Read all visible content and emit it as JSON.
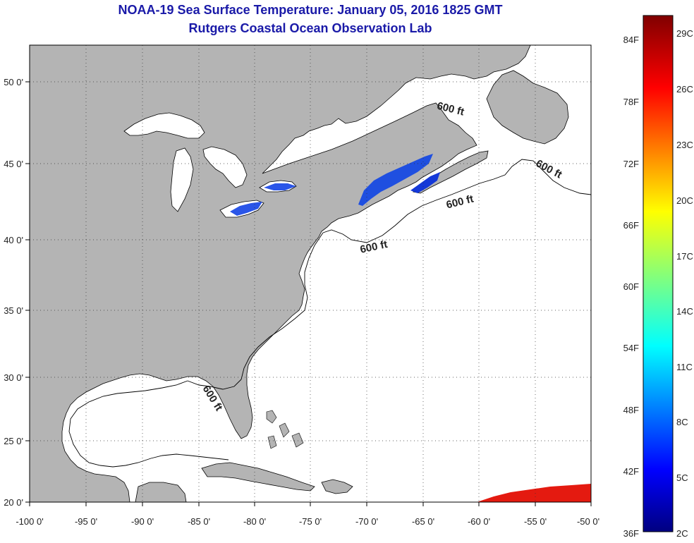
{
  "title": "NOAA-19 Sea Surface Temperature:  January 05, 2016 1825 GMT",
  "subtitle": "Rutgers Coastal Ocean Observation Lab",
  "map": {
    "lon_range": [
      -100,
      -50
    ],
    "lat_range": [
      20,
      52
    ],
    "lon_ticks": [
      "-100 0'",
      "-95 0'",
      "-90 0'",
      "-85 0'",
      "-80 0'",
      "-75 0'",
      "-70 0'",
      "-65 0'",
      "-60 0'",
      "-55 0'",
      "-50 0'"
    ],
    "lat_ticks": [
      "50 0'",
      "45 0'",
      "40 0'",
      "35 0'",
      "30 0'",
      "25 0'",
      "20 0'"
    ],
    "land_color": "#b4b4b4",
    "water_color": "#ffffff",
    "grid": "dotted",
    "isobath_labels": [
      "600 ft",
      "600 ft",
      "600 ft",
      "600 ft"
    ]
  },
  "colorbar": {
    "fahrenheit": [
      "84F",
      "78F",
      "72F",
      "66F",
      "60F",
      "54F",
      "48F",
      "42F",
      "36F"
    ],
    "celsius": [
      "29C",
      "26C",
      "23C",
      "20C",
      "17C",
      "14C",
      "11C",
      "8C",
      "5C",
      "2C"
    ]
  }
}
